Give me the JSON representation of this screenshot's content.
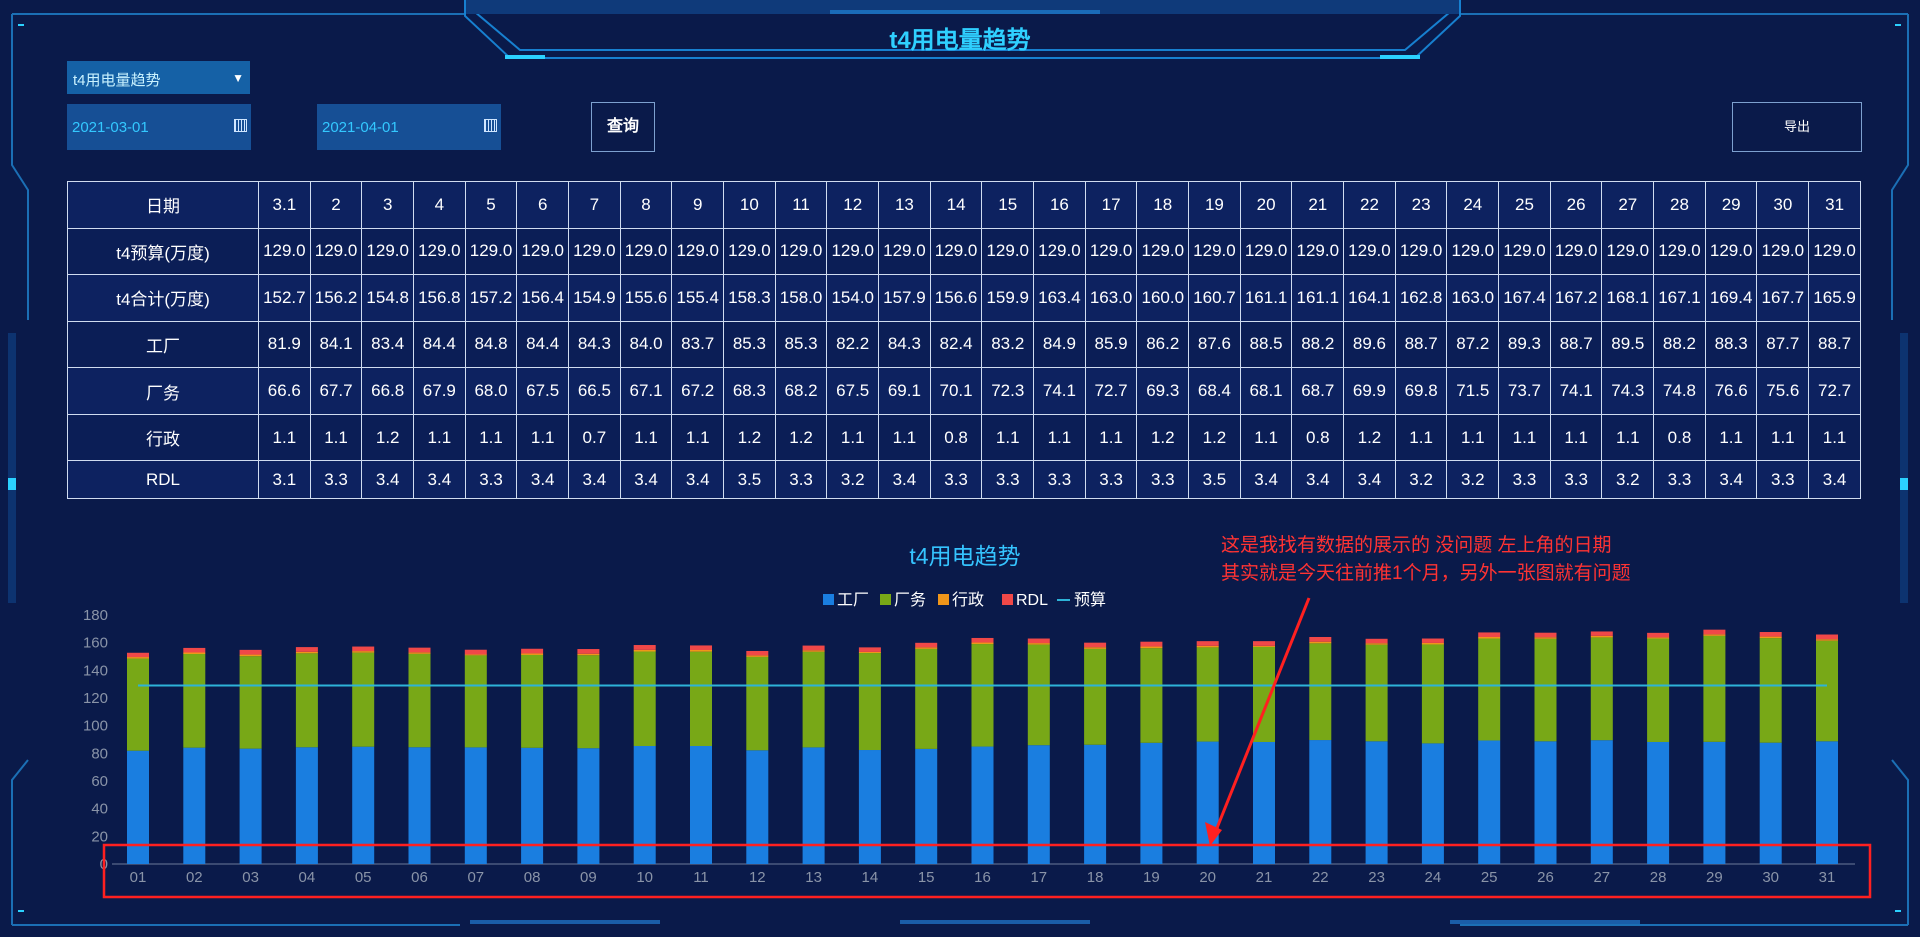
{
  "header": {
    "title": "t4用电量趋势"
  },
  "filters": {
    "report_select": "t4用电量趋势",
    "start_date": "2021-03-01",
    "end_date": "2021-04-01",
    "query_label": "查询",
    "export_label": "导出"
  },
  "table": {
    "columns": [
      "日期",
      "3.1",
      "2",
      "3",
      "4",
      "5",
      "6",
      "7",
      "8",
      "9",
      "10",
      "11",
      "12",
      "13",
      "14",
      "15",
      "16",
      "17",
      "18",
      "19",
      "20",
      "21",
      "22",
      "23",
      "24",
      "25",
      "26",
      "27",
      "28",
      "29",
      "30",
      "31"
    ],
    "rows": [
      [
        "t4预算(万度)",
        "129.0",
        "129.0",
        "129.0",
        "129.0",
        "129.0",
        "129.0",
        "129.0",
        "129.0",
        "129.0",
        "129.0",
        "129.0",
        "129.0",
        "129.0",
        "129.0",
        "129.0",
        "129.0",
        "129.0",
        "129.0",
        "129.0",
        "129.0",
        "129.0",
        "129.0",
        "129.0",
        "129.0",
        "129.0",
        "129.0",
        "129.0",
        "129.0",
        "129.0",
        "129.0",
        "129.0"
      ],
      [
        "t4合计(万度)",
        "152.7",
        "156.2",
        "154.8",
        "156.8",
        "157.2",
        "156.4",
        "154.9",
        "155.6",
        "155.4",
        "158.3",
        "158.0",
        "154.0",
        "157.9",
        "156.6",
        "159.9",
        "163.4",
        "163.0",
        "160.0",
        "160.7",
        "161.1",
        "161.1",
        "164.1",
        "162.8",
        "163.0",
        "167.4",
        "167.2",
        "168.1",
        "167.1",
        "169.4",
        "167.7",
        "165.9"
      ],
      [
        "工厂",
        "81.9",
        "84.1",
        "83.4",
        "84.4",
        "84.8",
        "84.4",
        "84.3",
        "84.0",
        "83.7",
        "85.3",
        "85.3",
        "82.2",
        "84.3",
        "82.4",
        "83.2",
        "84.9",
        "85.9",
        "86.2",
        "87.6",
        "88.5",
        "88.2",
        "89.6",
        "88.7",
        "87.2",
        "89.3",
        "88.7",
        "89.5",
        "88.2",
        "88.3",
        "87.7",
        "88.7"
      ],
      [
        "厂务",
        "66.6",
        "67.7",
        "66.8",
        "67.9",
        "68.0",
        "67.5",
        "66.5",
        "67.1",
        "67.2",
        "68.3",
        "68.2",
        "67.5",
        "69.1",
        "70.1",
        "72.3",
        "74.1",
        "72.7",
        "69.3",
        "68.4",
        "68.1",
        "68.7",
        "69.9",
        "69.8",
        "71.5",
        "73.7",
        "74.1",
        "74.3",
        "74.8",
        "76.6",
        "75.6",
        "72.7"
      ],
      [
        "行政",
        "1.1",
        "1.1",
        "1.2",
        "1.1",
        "1.1",
        "1.1",
        "0.7",
        "1.1",
        "1.1",
        "1.2",
        "1.2",
        "1.1",
        "1.1",
        "0.8",
        "1.1",
        "1.1",
        "1.1",
        "1.2",
        "1.2",
        "1.1",
        "0.8",
        "1.2",
        "1.1",
        "1.1",
        "1.1",
        "1.1",
        "1.1",
        "0.8",
        "1.1",
        "1.1",
        "1.1"
      ],
      [
        "RDL",
        "3.1",
        "3.3",
        "3.4",
        "3.4",
        "3.3",
        "3.4",
        "3.4",
        "3.4",
        "3.4",
        "3.5",
        "3.3",
        "3.2",
        "3.4",
        "3.3",
        "3.3",
        "3.3",
        "3.3",
        "3.3",
        "3.5",
        "3.4",
        "3.4",
        "3.4",
        "3.2",
        "3.2",
        "3.3",
        "3.3",
        "3.2",
        "3.3",
        "3.4",
        "3.3",
        "3.4"
      ]
    ]
  },
  "annotation": {
    "line1": "这是我找有数据的展示的  没问题  左上角的日期",
    "line2": "其实就是今天往前推1个月，另外一张图就有问题"
  },
  "colors": {
    "factory": "#1a7ee0",
    "facility": "#78a817",
    "admin": "#f0961a",
    "rdl": "#f04848",
    "budget": "#2db3d8",
    "annotation": "#ff2020"
  },
  "chart_data": {
    "type": "bar",
    "title": "t4用电趋势",
    "categories": [
      "01",
      "02",
      "03",
      "04",
      "05",
      "06",
      "07",
      "08",
      "09",
      "10",
      "11",
      "12",
      "13",
      "14",
      "15",
      "16",
      "17",
      "18",
      "19",
      "20",
      "21",
      "22",
      "23",
      "24",
      "25",
      "26",
      "27",
      "28",
      "29",
      "30",
      "31"
    ],
    "series": [
      {
        "name": "工厂",
        "type": "bar",
        "stack": "total",
        "values": [
          81.9,
          84.1,
          83.4,
          84.4,
          84.8,
          84.4,
          84.3,
          84.0,
          83.7,
          85.3,
          85.3,
          82.2,
          84.3,
          82.4,
          83.2,
          84.9,
          85.9,
          86.2,
          87.6,
          88.5,
          88.2,
          89.6,
          88.7,
          87.2,
          89.3,
          88.7,
          89.5,
          88.2,
          88.3,
          87.7,
          88.7
        ]
      },
      {
        "name": "厂务",
        "type": "bar",
        "stack": "total",
        "values": [
          66.6,
          67.7,
          66.8,
          67.9,
          68.0,
          67.5,
          66.5,
          67.1,
          67.2,
          68.3,
          68.2,
          67.5,
          69.1,
          70.1,
          72.3,
          74.1,
          72.7,
          69.3,
          68.4,
          68.1,
          68.7,
          69.9,
          69.8,
          71.5,
          73.7,
          74.1,
          74.3,
          74.8,
          76.6,
          75.6,
          72.7
        ]
      },
      {
        "name": "行政",
        "type": "bar",
        "stack": "total",
        "values": [
          1.1,
          1.1,
          1.2,
          1.1,
          1.1,
          1.1,
          0.7,
          1.1,
          1.1,
          1.2,
          1.2,
          1.1,
          1.1,
          0.8,
          1.1,
          1.1,
          1.1,
          1.2,
          1.2,
          1.1,
          0.8,
          1.2,
          1.1,
          1.1,
          1.1,
          1.1,
          1.1,
          0.8,
          1.1,
          1.1,
          1.1
        ]
      },
      {
        "name": "RDL",
        "type": "bar",
        "stack": "total",
        "values": [
          3.1,
          3.3,
          3.4,
          3.4,
          3.3,
          3.4,
          3.4,
          3.4,
          3.4,
          3.5,
          3.3,
          3.2,
          3.4,
          3.3,
          3.3,
          3.3,
          3.3,
          3.3,
          3.5,
          3.4,
          3.4,
          3.4,
          3.2,
          3.2,
          3.3,
          3.3,
          3.2,
          3.3,
          3.4,
          3.3,
          3.4
        ]
      },
      {
        "name": "预算",
        "type": "line",
        "values": [
          129,
          129,
          129,
          129,
          129,
          129,
          129,
          129,
          129,
          129,
          129,
          129,
          129,
          129,
          129,
          129,
          129,
          129,
          129,
          129,
          129,
          129,
          129,
          129,
          129,
          129,
          129,
          129,
          129,
          129,
          129
        ]
      }
    ],
    "yticks": [
      0,
      20,
      40,
      60,
      80,
      100,
      120,
      140,
      160,
      180
    ],
    "ylim": [
      0,
      180
    ],
    "legend": "top-center",
    "grid": false
  }
}
